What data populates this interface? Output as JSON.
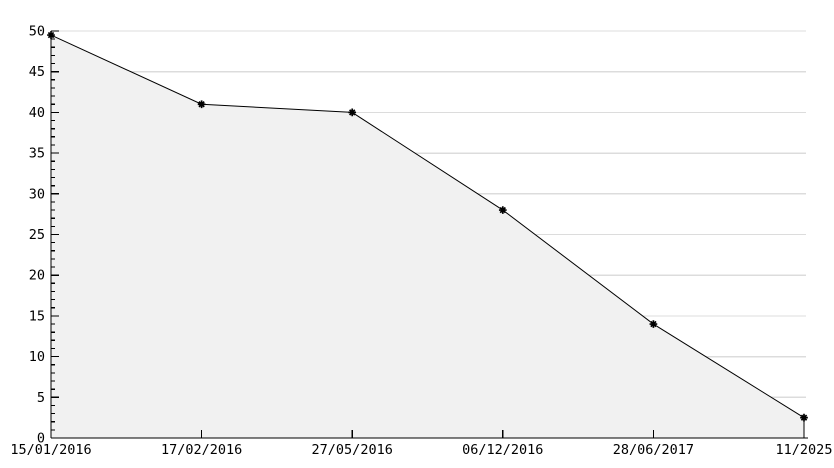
{
  "chart_data": {
    "type": "area",
    "title": "",
    "xlabel": "",
    "ylabel": "",
    "categories": [
      "15/01/2016",
      "17/02/2016",
      "27/05/2016",
      "06/12/2016",
      "28/06/2017",
      "11/2025"
    ],
    "values": [
      49.5,
      41,
      40,
      28,
      14,
      2.5
    ],
    "ylim": [
      0,
      50
    ],
    "y_major_step": 5,
    "y_minor_step": 1,
    "y_tick_labels": [
      "0",
      "5",
      "10",
      "15",
      "20",
      "25",
      "30",
      "35",
      "40",
      "45",
      "50"
    ],
    "grid": "horizontal-major",
    "legend": "none",
    "marker": "asterisk",
    "colors": {
      "line": "#000000",
      "fill": "#f1f1f1",
      "grid": "#dcdcdc",
      "axis": "#000000",
      "text": "#000000",
      "background": "#ffffff"
    }
  }
}
